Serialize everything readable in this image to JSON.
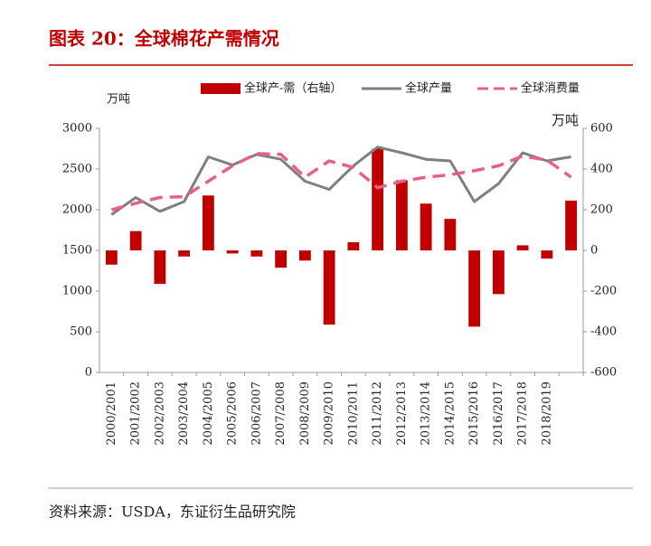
{
  "chart_data": {
    "type": "combo",
    "title": "图表 20：全球棉花产需情况",
    "source": "资料来源：USDA，东证衍生品研究院",
    "y_unit": "万吨",
    "y2_unit": "万吨",
    "categories": [
      "2000/2001",
      "2001/2002",
      "2002/2003",
      "2003/2004",
      "2004/2005",
      "2005/2006",
      "2006/2007",
      "2007/2008",
      "2008/2009",
      "2009/2010",
      "2010/2011",
      "2011/2012",
      "2012/2013",
      "2013/2014",
      "2014/2015",
      "2015/2016",
      "2016/2017",
      "2017/2018",
      "2018/2019",
      null
    ],
    "series": [
      {
        "name": "全球产-需（右轴）",
        "kind": "bar",
        "axis": "y2",
        "color": "#c00000",
        "values": [
          -70,
          95,
          -165,
          -30,
          270,
          -15,
          -30,
          -85,
          -50,
          -365,
          40,
          500,
          345,
          230,
          155,
          -375,
          -215,
          25,
          -40,
          245
        ]
      },
      {
        "name": "全球产量",
        "kind": "line",
        "color": "#7f7f7f",
        "values": [
          1940,
          2150,
          1980,
          2100,
          2650,
          2550,
          2680,
          2620,
          2350,
          2250,
          2540,
          2770,
          2700,
          2620,
          2600,
          2100,
          2320,
          2700,
          2600,
          2650
        ]
      },
      {
        "name": "全球消费量",
        "kind": "line",
        "dashed": true,
        "color": "#e8608a",
        "values": [
          2000,
          2080,
          2150,
          2160,
          2350,
          2540,
          2690,
          2680,
          2400,
          2600,
          2520,
          2270,
          2350,
          2400,
          2430,
          2480,
          2540,
          2660,
          2610,
          2400
        ]
      }
    ],
    "ylim": [
      0,
      3000
    ],
    "yticks": [
      0,
      500,
      1000,
      1500,
      2000,
      2500,
      3000
    ],
    "y2lim": [
      -600,
      600
    ],
    "y2ticks": [
      -600,
      -400,
      -200,
      0,
      200,
      400,
      600
    ]
  }
}
